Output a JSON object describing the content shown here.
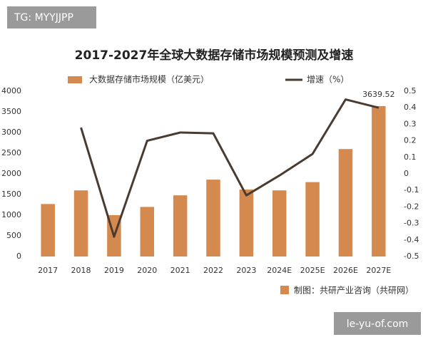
{
  "watermark": "TG: MYYJJPP",
  "site": "le-yu-of.com",
  "source": "制图：共研产业咨询（共研网）",
  "chart_data": {
    "type": "bar-line",
    "title": "2017-2027年全球大数据存储市场规模预测及增速",
    "categories": [
      "2017",
      "2018",
      "2019",
      "2020",
      "2021",
      "2022",
      "2023",
      "2024E",
      "2025E",
      "2026E",
      "2027E"
    ],
    "series": [
      {
        "name": "大数据存储市场规模（亿美元）",
        "color": "#d4894e",
        "type": "bar",
        "values": [
          1270,
          1600,
          1000,
          1200,
          1480,
          1860,
          1620,
          1600,
          1800,
          2600,
          3639.52
        ],
        "value_labels": [
          null,
          null,
          null,
          null,
          null,
          null,
          null,
          null,
          null,
          null,
          "3639.52"
        ]
      },
      {
        "name": "增速（%）",
        "color": "#4a3b30",
        "type": "line",
        "axis": "y2",
        "values": [
          null,
          0.28,
          -0.38,
          0.2,
          0.25,
          0.245,
          -0.13,
          -0.01,
          0.12,
          0.45,
          0.4
        ]
      }
    ],
    "ylim": [
      0,
      4000
    ],
    "yticks": [
      0,
      500,
      1000,
      1500,
      2000,
      2500,
      3000,
      3500,
      4000
    ],
    "y2lim": [
      -0.5,
      0.5
    ],
    "y2ticks": [
      -0.5,
      -0.4,
      -0.3,
      -0.2,
      -0.1,
      0,
      0.1,
      0.2,
      0.3,
      0.4,
      0.5
    ],
    "grid": false
  }
}
